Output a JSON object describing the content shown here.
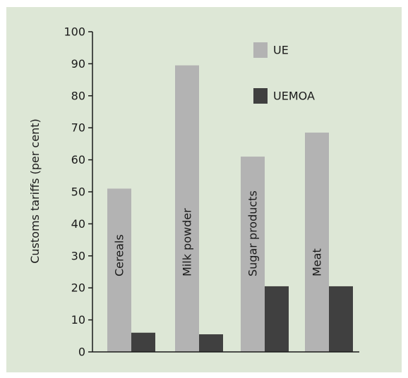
{
  "colors": {
    "background": "#dde7d6",
    "axis": "#1a1a1a",
    "text": "#1a1a1a"
  },
  "chart_data": {
    "type": "bar",
    "title": "",
    "xlabel": "",
    "ylabel": "Customs tariffs (per cent)",
    "ylim": [
      0,
      100
    ],
    "yticks": [
      0,
      10,
      20,
      30,
      40,
      50,
      60,
      70,
      80,
      90,
      100
    ],
    "grid": false,
    "legend_position": "top-right",
    "categories": [
      "Cereals",
      "Milk powder",
      "Sugar products",
      "Meat"
    ],
    "category_label_style": "vertical text inside the first bar of each group",
    "series": [
      {
        "name": "UE",
        "color": "#b3b3b3",
        "values": [
          51,
          89.5,
          61,
          68.5
        ]
      },
      {
        "name": "UEMOA",
        "color": "#404040",
        "values": [
          6,
          5.5,
          20.5,
          20.5
        ]
      }
    ]
  }
}
